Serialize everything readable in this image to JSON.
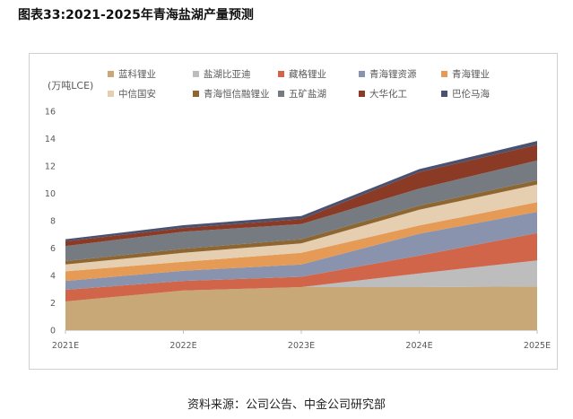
{
  "title": "图表33:2021-2025年青海盐湖产量预测",
  "source": "资料来源：公司公告、中金公司研究部",
  "chart_data": {
    "type": "area",
    "stacked": true,
    "title": "图表33:2021-2025年青海盐湖产量预测",
    "ylabel": "(万吨LCE)",
    "xlabel": "",
    "categories": [
      "2021E",
      "2022E",
      "2023E",
      "2024E",
      "2025E"
    ],
    "ylim": [
      0,
      16
    ],
    "yticks": [
      0,
      2,
      4,
      6,
      8,
      10,
      12,
      14,
      16
    ],
    "grid": false,
    "legend_position": "top",
    "series": [
      {
        "name": "蓝科锂业",
        "color": "#C9A878",
        "values": [
          2.1,
          2.9,
          3.15,
          3.15,
          3.2
        ]
      },
      {
        "name": "盐湖比亚迪",
        "color": "#BDBDBD",
        "values": [
          0,
          0,
          0,
          1.0,
          1.9
        ]
      },
      {
        "name": "藏格锂业",
        "color": "#D0654A",
        "values": [
          0.85,
          0.7,
          0.75,
          1.3,
          2.0
        ]
      },
      {
        "name": "青海锂资源",
        "color": "#8A93AE",
        "values": [
          0.65,
          0.75,
          0.9,
          1.6,
          1.55
        ]
      },
      {
        "name": "青海锂业",
        "color": "#E59A55",
        "values": [
          0.7,
          0.65,
          0.85,
          0.6,
          0.7
        ]
      },
      {
        "name": "中信国安",
        "color": "#E6CEB0",
        "values": [
          0.5,
          0.65,
          0.7,
          1.15,
          1.3
        ]
      },
      {
        "name": "青海恒信融锂业",
        "color": "#8E6631",
        "values": [
          0.25,
          0.3,
          0.3,
          0.3,
          0.3
        ]
      },
      {
        "name": "五矿盐湖",
        "color": "#757B80",
        "values": [
          1.1,
          1.25,
          1.1,
          1.25,
          1.45
        ]
      },
      {
        "name": "大华化工",
        "color": "#8B3A26",
        "values": [
          0.35,
          0.27,
          0.37,
          1.2,
          1.15
        ]
      },
      {
        "name": "巴伦马海",
        "color": "#4A5270",
        "values": [
          0.15,
          0.2,
          0.22,
          0.22,
          0.28
        ]
      }
    ]
  }
}
